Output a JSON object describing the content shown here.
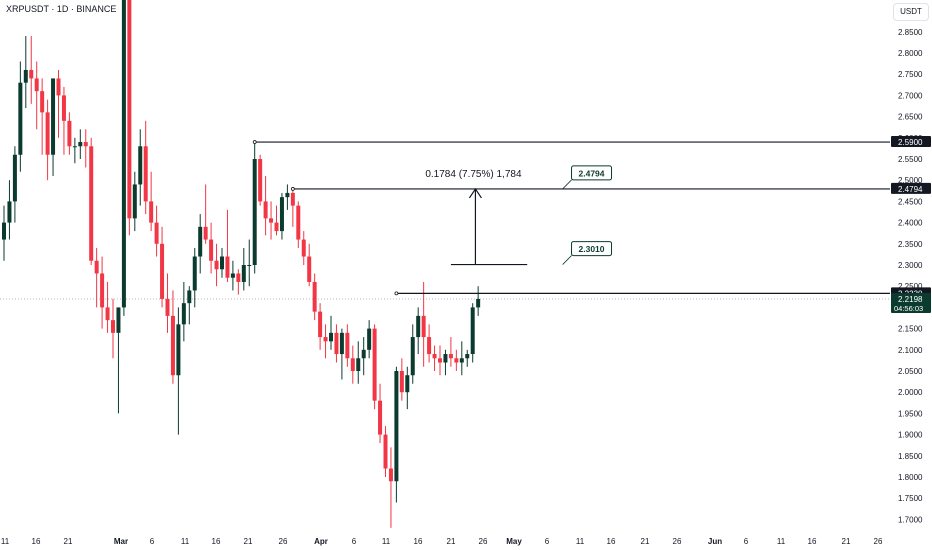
{
  "header": {
    "symbol_title": "XRPUSDT · 1D · BINANCE",
    "currency_button": "USDT"
  },
  "chart_data": {
    "type": "candlestick",
    "symbol": "XRPUSDT",
    "interval": "1D",
    "exchange": "BINANCE",
    "currency": "USDT",
    "ylim": [
      1.675,
      2.925
    ],
    "y_ticks": [
      "2.8500",
      "2.8000",
      "2.7500",
      "2.7000",
      "2.6500",
      "2.6000",
      "2.5500",
      "2.5000",
      "2.4500",
      "2.4000",
      "2.3500",
      "2.3000",
      "2.2500",
      "2.2000",
      "2.1500",
      "2.1000",
      "2.0500",
      "2.0000",
      "1.9500",
      "1.9000",
      "1.8500",
      "1.8000",
      "1.7500",
      "1.7000"
    ],
    "x_ticks": [
      "11",
      "16",
      "21",
      "Mar",
      "6",
      "11",
      "16",
      "21",
      "26",
      "Apr",
      "6",
      "11",
      "16",
      "21",
      "26",
      "May",
      "6",
      "11",
      "16",
      "21",
      "26",
      "Jun",
      "6",
      "11",
      "16",
      "21",
      "26"
    ],
    "x_tick_bold": [
      "Mar",
      "Apr",
      "May",
      "Jun"
    ],
    "up_color": "#0b3b2e",
    "down_color": "#f23645",
    "last_price": "2.2198",
    "countdown": "04:56:03",
    "price_labels": [
      {
        "text": "2.5900",
        "value": 2.59,
        "style": "dark"
      },
      {
        "text": "2.4794",
        "value": 2.4794,
        "style": "dark"
      },
      {
        "text": "2.2330",
        "value": 2.233,
        "style": "dark"
      },
      {
        "text": "2.2198",
        "value": 2.2198,
        "style": "green"
      }
    ],
    "horizontal_lines": [
      {
        "value": 2.59,
        "from_candle": 46
      },
      {
        "value": 2.4794,
        "from_candle": 53
      },
      {
        "value": 2.233,
        "from_candle": 72
      },
      {
        "value": 2.301,
        "from_candle": 82,
        "to_candle": 96
      }
    ],
    "callouts": [
      {
        "text": "2.4794",
        "value": 2.4794
      },
      {
        "text": "2.3010",
        "value": 2.301
      }
    ],
    "measure": {
      "from": 2.301,
      "to": 2.4794,
      "label": "0.1784 (7.75%) 1,784"
    },
    "candles": [
      [
        2.36,
        2.44,
        2.31,
        2.4
      ],
      [
        2.4,
        2.5,
        2.36,
        2.45
      ],
      [
        2.45,
        2.58,
        2.4,
        2.56
      ],
      [
        2.56,
        2.78,
        2.52,
        2.73
      ],
      [
        2.73,
        2.84,
        2.67,
        2.76
      ],
      [
        2.76,
        2.84,
        2.68,
        2.74
      ],
      [
        2.74,
        2.78,
        2.62,
        2.71
      ],
      [
        2.71,
        2.74,
        2.56,
        2.66
      ],
      [
        2.66,
        2.69,
        2.5,
        2.56
      ],
      [
        2.56,
        2.74,
        2.51,
        2.74
      ],
      [
        2.74,
        2.76,
        2.6,
        2.7
      ],
      [
        2.7,
        2.72,
        2.56,
        2.64
      ],
      [
        2.64,
        2.66,
        2.56,
        2.58
      ],
      [
        2.58,
        2.6,
        2.54,
        2.58
      ],
      [
        2.58,
        2.62,
        2.55,
        2.59
      ],
      [
        2.59,
        2.62,
        2.53,
        2.58
      ],
      [
        2.58,
        2.6,
        2.3,
        2.31
      ],
      [
        2.31,
        2.34,
        2.2,
        2.28
      ],
      [
        2.28,
        2.32,
        2.15,
        2.2
      ],
      [
        2.2,
        2.26,
        2.14,
        2.17
      ],
      [
        2.17,
        2.22,
        2.08,
        2.14
      ],
      [
        2.14,
        2.19,
        1.95,
        2.2
      ],
      [
        2.2,
        2.95,
        2.18,
        2.93
      ],
      [
        2.93,
        3.0,
        2.37,
        2.41
      ],
      [
        2.41,
        2.52,
        2.38,
        2.49
      ],
      [
        2.49,
        2.62,
        2.44,
        2.58
      ],
      [
        2.58,
        2.64,
        2.42,
        2.45
      ],
      [
        2.45,
        2.52,
        2.38,
        2.4
      ],
      [
        2.4,
        2.44,
        2.32,
        2.35
      ],
      [
        2.35,
        2.39,
        2.2,
        2.22
      ],
      [
        2.22,
        2.28,
        2.14,
        2.18
      ],
      [
        2.18,
        2.24,
        2.02,
        2.04
      ],
      [
        2.04,
        2.2,
        1.9,
        2.16
      ],
      [
        2.16,
        2.26,
        2.12,
        2.21
      ],
      [
        2.21,
        2.25,
        2.16,
        2.24
      ],
      [
        2.24,
        2.34,
        2.2,
        2.32
      ],
      [
        2.32,
        2.42,
        2.28,
        2.39
      ],
      [
        2.39,
        2.49,
        2.35,
        2.36
      ],
      [
        2.36,
        2.4,
        2.28,
        2.31
      ],
      [
        2.31,
        2.35,
        2.25,
        2.29
      ],
      [
        2.29,
        2.34,
        2.27,
        2.32
      ],
      [
        2.32,
        2.43,
        2.26,
        2.27
      ],
      [
        2.27,
        2.31,
        2.24,
        2.28
      ],
      [
        2.28,
        2.29,
        2.23,
        2.26
      ],
      [
        2.26,
        2.34,
        2.24,
        2.3
      ],
      [
        2.3,
        2.36,
        2.25,
        2.3
      ],
      [
        2.3,
        2.59,
        2.28,
        2.55
      ],
      [
        2.55,
        2.56,
        2.44,
        2.45
      ],
      [
        2.45,
        2.51,
        2.37,
        2.41
      ],
      [
        2.41,
        2.45,
        2.36,
        2.4
      ],
      [
        2.4,
        2.44,
        2.37,
        2.38
      ],
      [
        2.38,
        2.47,
        2.36,
        2.46
      ],
      [
        2.46,
        2.49,
        2.43,
        2.47
      ],
      [
        2.47,
        2.48,
        2.39,
        2.44
      ],
      [
        2.44,
        2.45,
        2.34,
        2.36
      ],
      [
        2.36,
        2.38,
        2.3,
        2.32
      ],
      [
        2.32,
        2.35,
        2.25,
        2.26
      ],
      [
        2.26,
        2.28,
        2.17,
        2.19
      ],
      [
        2.19,
        2.21,
        2.1,
        2.13
      ],
      [
        2.13,
        2.16,
        2.08,
        2.12
      ],
      [
        2.12,
        2.18,
        2.1,
        2.14
      ],
      [
        2.14,
        2.16,
        2.07,
        2.09
      ],
      [
        2.09,
        2.15,
        2.03,
        2.14
      ],
      [
        2.14,
        2.16,
        2.06,
        2.08
      ],
      [
        2.08,
        2.11,
        2.02,
        2.05
      ],
      [
        2.05,
        2.12,
        2.02,
        2.08
      ],
      [
        2.08,
        2.13,
        2.04,
        2.1
      ],
      [
        2.1,
        2.17,
        2.08,
        2.15
      ],
      [
        2.15,
        2.16,
        1.96,
        1.98
      ],
      [
        1.98,
        2.02,
        1.88,
        1.9
      ],
      [
        1.9,
        1.92,
        1.8,
        1.82
      ],
      [
        1.82,
        1.87,
        1.68,
        1.79
      ],
      [
        1.79,
        2.06,
        1.74,
        2.05
      ],
      [
        2.05,
        2.08,
        1.98,
        2.0
      ],
      [
        2.0,
        2.06,
        1.96,
        2.04
      ],
      [
        2.04,
        2.16,
        2.02,
        2.13
      ],
      [
        2.13,
        2.2,
        2.09,
        2.18
      ],
      [
        2.18,
        2.26,
        2.06,
        2.13
      ],
      [
        2.13,
        2.16,
        2.07,
        2.09
      ],
      [
        2.09,
        2.11,
        2.05,
        2.08
      ],
      [
        2.08,
        2.11,
        2.04,
        2.07
      ],
      [
        2.07,
        2.1,
        2.04,
        2.09
      ],
      [
        2.09,
        2.13,
        2.06,
        2.08
      ],
      [
        2.08,
        2.1,
        2.05,
        2.07
      ],
      [
        2.07,
        2.12,
        2.04,
        2.08
      ],
      [
        2.08,
        2.1,
        2.06,
        2.09
      ],
      [
        2.09,
        2.21,
        2.07,
        2.2
      ],
      [
        2.2,
        2.25,
        2.18,
        2.22
      ]
    ]
  }
}
